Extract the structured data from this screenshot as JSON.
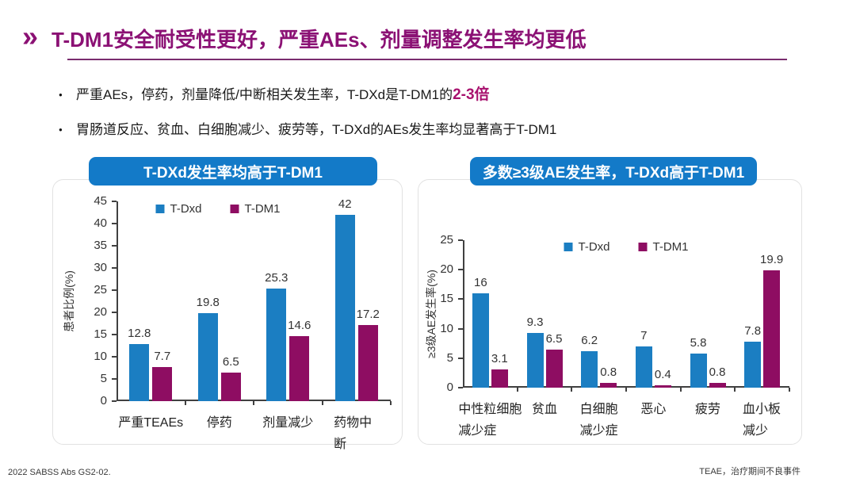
{
  "slide": {
    "chevron": "»",
    "title": "T-DM1安全耐受性更好，严重AEs、剂量调整发生率均更低"
  },
  "bullets": [
    {
      "text": "严重AEs，停药，剂量降低/中断相关发生率，T-DXd是T-DM1的",
      "highlight": "2-3倍"
    },
    {
      "text": "胃肠道反应、贫血、白细胞减少、疲劳等，T-DXd的AEs发生率均显著高于T-DM1",
      "highlight": ""
    }
  ],
  "colors": {
    "accent_purple": "#8B1174",
    "rule_purple": "#7A2C6E",
    "highlight_magenta": "#A8116E",
    "pill_blue": "#137AC8",
    "bar_blue": "#1B7EC2",
    "bar_magenta": "#8E0D62"
  },
  "chart_data": [
    {
      "type": "bar",
      "header": "T-DXd发生率均高于T-DM1",
      "ylabel": "患者比例(%)",
      "ylim": [
        0,
        45
      ],
      "ytick_step": 5,
      "grid": false,
      "legend_position": "top-center",
      "categories": [
        "严重TEAEs",
        "停药",
        "剂量减少",
        "药物中断"
      ],
      "series": [
        {
          "name": "T-Dxd",
          "color": "#1B7EC2",
          "values": [
            12.8,
            19.8,
            25.3,
            42
          ]
        },
        {
          "name": "T-DM1",
          "color": "#8E0D62",
          "values": [
            7.7,
            6.5,
            14.6,
            17.2
          ]
        }
      ]
    },
    {
      "type": "bar",
      "header": "多数≥3级AE发生率，T-DXd高于T-DM1",
      "ylabel": "≥3级AE发生率(%)",
      "ylim": [
        0,
        25
      ],
      "ytick_step": 5,
      "grid": false,
      "legend_position": "top-center",
      "categories": [
        "中性粒细胞\n减少症",
        "贫血",
        "白细胞\n减少症",
        "恶心",
        "疲劳",
        "血小板减少"
      ],
      "series": [
        {
          "name": "T-Dxd",
          "color": "#1B7EC2",
          "values": [
            16,
            9.3,
            6.2,
            7,
            5.8,
            7.8
          ]
        },
        {
          "name": "T-DM1",
          "color": "#8E0D62",
          "values": [
            3.1,
            6.5,
            0.8,
            0.4,
            0.8,
            19.9
          ]
        }
      ]
    }
  ],
  "footer": {
    "left": "2022 SABSS Abs GS2-02.",
    "right": "TEAE，治疗期间不良事件"
  }
}
